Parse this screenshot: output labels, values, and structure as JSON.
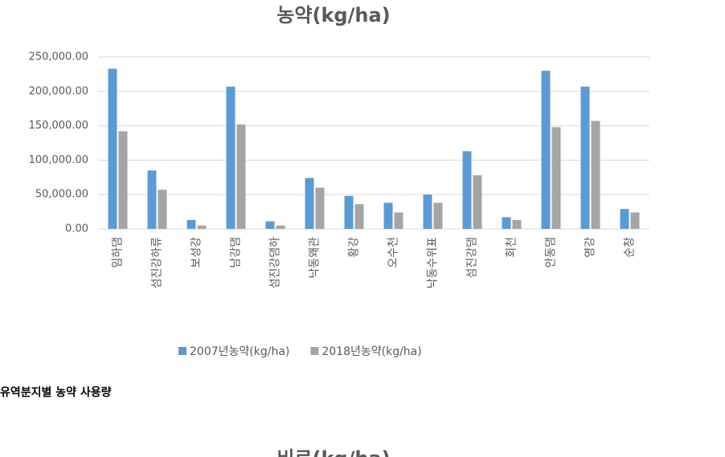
{
  "chart_data": {
    "type": "bar",
    "title": "농약(kg/ha)",
    "categories": [
      "임하댐",
      "섬진강하류",
      "보성강",
      "남강댐",
      "섬진강댐하",
      "낙동왜관",
      "황강",
      "오수천",
      "낙동수위표",
      "섬진강댐",
      "회천",
      "안동댐",
      "영강",
      "순창"
    ],
    "series": [
      {
        "name": "2007년농약(kg/ha)",
        "color": "#5b9bd5",
        "values": [
          233000,
          85000,
          13000,
          207000,
          11000,
          74000,
          48000,
          38000,
          50000,
          113000,
          17000,
          230000,
          207000,
          29000
        ]
      },
      {
        "name": "2018년농약(kg/ha)",
        "color": "#a5a5a5",
        "values": [
          142000,
          57000,
          5000,
          152000,
          5000,
          60000,
          36000,
          24000,
          38000,
          78000,
          13000,
          148000,
          157000,
          24000
        ]
      }
    ],
    "ylim": [
      0,
      250000
    ],
    "yticks": [
      {
        "value": 0,
        "label": "0.00"
      },
      {
        "value": 50000,
        "label": "50,000.00"
      },
      {
        "value": 100000,
        "label": "100,000.00"
      },
      {
        "value": 150000,
        "label": "150,000.00"
      },
      {
        "value": 200000,
        "label": "200,000.00"
      },
      {
        "value": 250000,
        "label": "250,000.00"
      }
    ],
    "grid": true,
    "legend": "bottom"
  },
  "caption": "유역분지별 농약 사용량",
  "next_title": "비료(kg/ha)"
}
